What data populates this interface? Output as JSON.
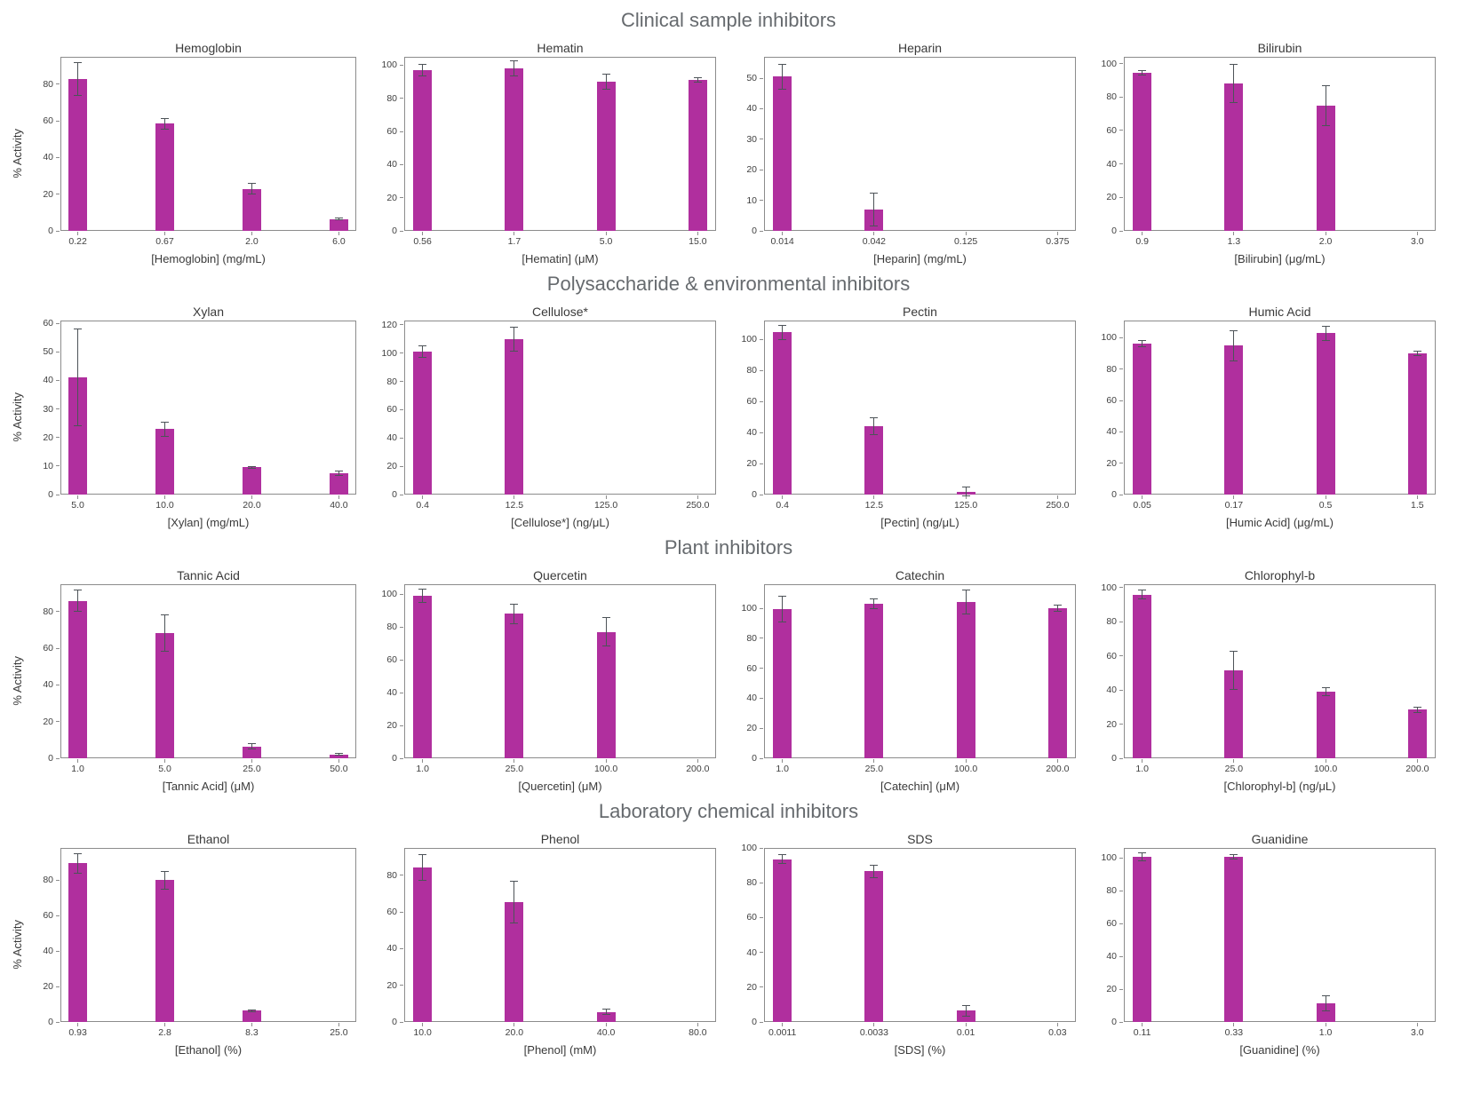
{
  "figure": {
    "bar_color": "#b02f9e",
    "error_color": "#4d5358",
    "axis_color": "#8c8c8c",
    "ylabel": "% Activity",
    "section_titles": [
      "Clinical sample inhibitors",
      "Polysaccharide & environmental inhibitors",
      "Plant inhibitors",
      "Laboratory chemical inhibitors"
    ]
  },
  "chart_data": [
    {
      "type": "bar",
      "section": "Clinical sample inhibitors",
      "title": "Hemoglobin",
      "xlabel": "[Hemoglobin] (mg/mL)",
      "ylabel": "% Activity",
      "categories": [
        "0.22",
        "0.67",
        "2.0",
        "6.0"
      ],
      "values": [
        83,
        58.5,
        23,
        6.5
      ],
      "errors": [
        9,
        3,
        3,
        0.5
      ],
      "yticks": [
        0,
        20,
        40,
        60,
        80
      ],
      "ylim": [
        0,
        95
      ],
      "grid": false,
      "legend": "none"
    },
    {
      "type": "bar",
      "section": "Clinical sample inhibitors",
      "title": "Hematin",
      "xlabel": "[Hematin] (μM)",
      "ylabel": "",
      "categories": [
        "0.56",
        "1.7",
        "5.0",
        "15.0"
      ],
      "values": [
        97,
        98,
        90,
        91
      ],
      "errors": [
        3.5,
        4.5,
        4.5,
        1.5
      ],
      "yticks": [
        0,
        20,
        40,
        60,
        80,
        100
      ],
      "ylim": [
        0,
        105
      ],
      "grid": false,
      "legend": "none"
    },
    {
      "type": "bar",
      "section": "Clinical sample inhibitors",
      "title": "Heparin",
      "xlabel": "[Heparin] (mg/mL)",
      "ylabel": "",
      "categories": [
        "0.014",
        "0.042",
        "0.125",
        "0.375"
      ],
      "values": [
        50.5,
        7,
        0,
        0
      ],
      "errors": [
        4,
        5.3,
        0,
        0
      ],
      "yticks": [
        0,
        10,
        20,
        30,
        40,
        50
      ],
      "ylim": [
        0,
        57
      ],
      "grid": false,
      "legend": "none"
    },
    {
      "type": "bar",
      "section": "Clinical sample inhibitors",
      "title": "Bilirubin",
      "xlabel": "[Bilirubin] (μg/mL)",
      "ylabel": "",
      "categories": [
        "0.9",
        "1.3",
        "2.0",
        "3.0"
      ],
      "values": [
        94.5,
        88,
        75,
        0
      ],
      "errors": [
        1.5,
        11.5,
        12,
        0
      ],
      "yticks": [
        0,
        20,
        40,
        60,
        80,
        100
      ],
      "ylim": [
        0,
        104
      ],
      "grid": false,
      "legend": "none"
    },
    {
      "type": "bar",
      "section": "Polysaccharide & environmental inhibitors",
      "title": "Xylan",
      "xlabel": "[Xylan] (mg/mL)",
      "ylabel": "% Activity",
      "categories": [
        "5.0",
        "10.0",
        "20.0",
        "40.0"
      ],
      "values": [
        41,
        23,
        9.5,
        7.5
      ],
      "errors": [
        17,
        2.5,
        0.4,
        0.8
      ],
      "yticks": [
        0,
        10,
        20,
        30,
        40,
        50,
        60
      ],
      "ylim": [
        0,
        61
      ],
      "grid": false,
      "legend": "none"
    },
    {
      "type": "bar",
      "section": "Polysaccharide & environmental inhibitors",
      "title": "Cellulose*",
      "xlabel": "[Cellulose*] (ng/μL)",
      "ylabel": "",
      "categories": [
        "0.4",
        "12.5",
        "125.0",
        "250.0"
      ],
      "values": [
        101,
        110,
        0,
        0
      ],
      "errors": [
        4,
        8.5,
        0,
        0
      ],
      "yticks": [
        0,
        20,
        40,
        60,
        80,
        100,
        120
      ],
      "ylim": [
        0,
        123
      ],
      "grid": false,
      "legend": "none"
    },
    {
      "type": "bar",
      "section": "Polysaccharide & environmental inhibitors",
      "title": "Pectin",
      "xlabel": "[Pectin] (ng/μL)",
      "ylabel": "",
      "categories": [
        "0.4",
        "12.5",
        "125.0",
        "250.0"
      ],
      "values": [
        104.5,
        44,
        2,
        0
      ],
      "errors": [
        4.5,
        5.5,
        3,
        0
      ],
      "yticks": [
        0,
        20,
        40,
        60,
        80,
        100
      ],
      "ylim": [
        0,
        112
      ],
      "grid": false,
      "legend": "none"
    },
    {
      "type": "bar",
      "section": "Polysaccharide & environmental inhibitors",
      "title": "Humic Acid",
      "xlabel": "[Humic Acid] (μg/mL)",
      "ylabel": "",
      "categories": [
        "0.05",
        "0.17",
        "0.5",
        "1.5"
      ],
      "values": [
        96.5,
        95,
        103,
        90
      ],
      "errors": [
        2,
        9.5,
        4.5,
        1.5
      ],
      "yticks": [
        0,
        20,
        40,
        60,
        80,
        100
      ],
      "ylim": [
        0,
        111
      ],
      "grid": false,
      "legend": "none"
    },
    {
      "type": "bar",
      "section": "Plant inhibitors",
      "title": "Tannic Acid",
      "xlabel": "[Tannic Acid] (μM)",
      "ylabel": "% Activity",
      "categories": [
        "1.0",
        "5.0",
        "25.0",
        "50.0"
      ],
      "values": [
        86,
        68.5,
        6.5,
        2
      ],
      "errors": [
        6,
        10,
        1.5,
        0.5
      ],
      "yticks": [
        0,
        20,
        40,
        60,
        80
      ],
      "ylim": [
        0,
        95
      ],
      "grid": false,
      "legend": "none"
    },
    {
      "type": "bar",
      "section": "Plant inhibitors",
      "title": "Quercetin",
      "xlabel": "[Quercetin] (μM)",
      "ylabel": "",
      "categories": [
        "1.0",
        "25.0",
        "100.0",
        "200.0"
      ],
      "values": [
        99,
        88,
        77,
        0
      ],
      "errors": [
        4,
        6,
        8.5,
        0
      ],
      "yticks": [
        0,
        20,
        40,
        60,
        80,
        100
      ],
      "ylim": [
        0,
        106
      ],
      "grid": false,
      "legend": "none"
    },
    {
      "type": "bar",
      "section": "Plant inhibitors",
      "title": "Catechin",
      "xlabel": "[Catechin] (μM)",
      "ylabel": "",
      "categories": [
        "1.0",
        "25.0",
        "100.0",
        "200.0"
      ],
      "values": [
        99.5,
        103,
        104,
        100
      ],
      "errors": [
        8.5,
        3.5,
        8,
        2
      ],
      "yticks": [
        0,
        20,
        40,
        60,
        80,
        100
      ],
      "ylim": [
        0,
        116
      ],
      "grid": false,
      "legend": "none"
    },
    {
      "type": "bar",
      "section": "Plant inhibitors",
      "title": "Chlorophyl-b",
      "xlabel": "[Chlorophyl-b] (ng/μL)",
      "ylabel": "",
      "categories": [
        "1.0",
        "25.0",
        "100.0",
        "200.0"
      ],
      "values": [
        96,
        51.5,
        39,
        28.5
      ],
      "errors": [
        2.5,
        11,
        2.5,
        1.5
      ],
      "yticks": [
        0,
        20,
        40,
        60,
        80,
        100
      ],
      "ylim": [
        0,
        102
      ],
      "grid": false,
      "legend": "none"
    },
    {
      "type": "bar",
      "section": "Laboratory chemical inhibitors",
      "title": "Ethanol",
      "xlabel": "[Ethanol] (%)",
      "ylabel": "% Activity",
      "categories": [
        "0.93",
        "2.8",
        "8.3",
        "25.0"
      ],
      "values": [
        89.5,
        80,
        6.5,
        0
      ],
      "errors": [
        5.5,
        5,
        0.5,
        0
      ],
      "yticks": [
        0,
        20,
        40,
        60,
        80
      ],
      "ylim": [
        0,
        98
      ],
      "grid": false,
      "legend": "none"
    },
    {
      "type": "bar",
      "section": "Laboratory chemical inhibitors",
      "title": "Phenol",
      "xlabel": "[Phenol] (mM)",
      "ylabel": "",
      "categories": [
        "10.0",
        "20.0",
        "40.0",
        "80.0"
      ],
      "values": [
        84.5,
        65.5,
        5.5,
        0
      ],
      "errors": [
        7,
        11.5,
        1.5,
        0
      ],
      "yticks": [
        0,
        20,
        40,
        60,
        80
      ],
      "ylim": [
        0,
        95
      ],
      "grid": false,
      "legend": "none"
    },
    {
      "type": "bar",
      "section": "Laboratory chemical inhibitors",
      "title": "SDS",
      "xlabel": "[SDS] (%)",
      "ylabel": "",
      "categories": [
        "0.0011",
        "0.0033",
        "0.01",
        "0.03"
      ],
      "values": [
        93.5,
        86.5,
        6.5,
        0
      ],
      "errors": [
        2.5,
        3.5,
        3,
        0
      ],
      "yticks": [
        0,
        20,
        40,
        60,
        80,
        100
      ],
      "ylim": [
        0,
        100
      ],
      "grid": false,
      "legend": "none"
    },
    {
      "type": "bar",
      "section": "Laboratory chemical inhibitors",
      "title": "Guanidine",
      "xlabel": "[Guanidine] (%)",
      "ylabel": "",
      "categories": [
        "0.11",
        "0.33",
        "1.0",
        "3.0"
      ],
      "values": [
        100.5,
        100.5,
        11.5,
        0
      ],
      "errors": [
        2.5,
        1.5,
        4.5,
        0
      ],
      "yticks": [
        0,
        20,
        40,
        60,
        80,
        100
      ],
      "ylim": [
        0,
        106
      ],
      "grid": false,
      "legend": "none"
    }
  ]
}
